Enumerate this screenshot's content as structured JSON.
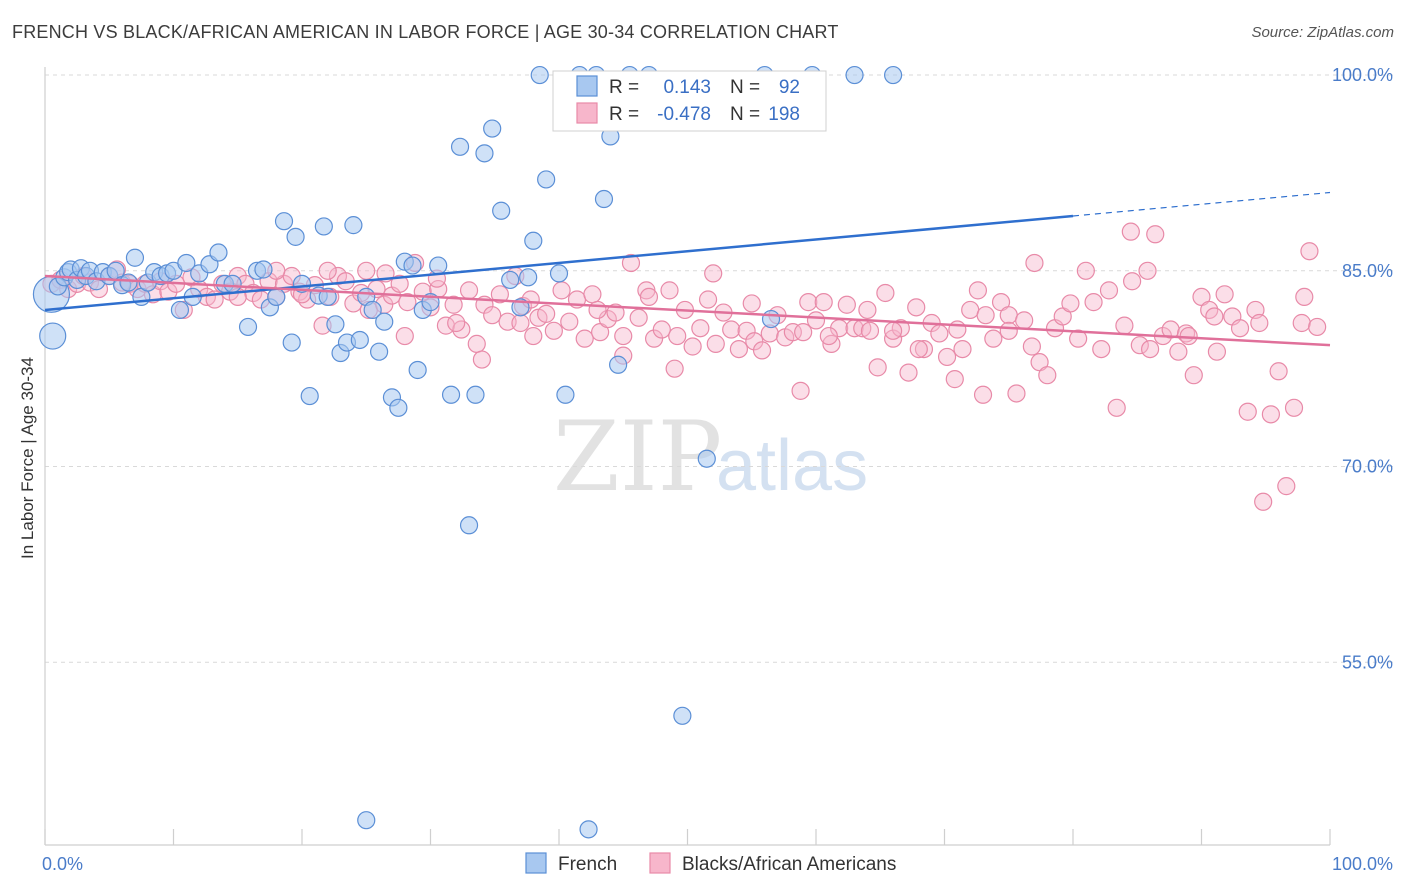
{
  "header": {
    "title": "FRENCH VS BLACK/AFRICAN AMERICAN IN LABOR FORCE | AGE 30-34 CORRELATION CHART",
    "source": "Source: ZipAtlas.com"
  },
  "watermark": {
    "zip": "ZIP",
    "atlas": "atlas"
  },
  "legend": {
    "rows": [
      {
        "r_label": "R =",
        "r_value": "0.143",
        "n_label": "N =",
        "n_value": "92"
      },
      {
        "r_label": "R =",
        "r_value": "-0.478",
        "n_label": "N =",
        "n_value": "198"
      }
    ]
  },
  "bottom_legend": {
    "french": "French",
    "black": "Blacks/African Americans"
  },
  "colors": {
    "french_fill": "#a8c8f0",
    "french_stroke": "#5b8fd6",
    "french_line": "#2f6fce",
    "black_fill": "#f7b6cb",
    "black_stroke": "#e88aa8",
    "black_line": "#e0709a",
    "tick_label": "#4a7cc9",
    "grid": "#d9d9d9"
  },
  "chart_data": {
    "type": "scatter",
    "title": "FRENCH VS BLACK/AFRICAN AMERICAN IN LABOR FORCE | AGE 30-34 CORRELATION CHART",
    "xlabel": "",
    "ylabel": "In Labor Force | Age 30-34",
    "xlim": [
      0,
      100
    ],
    "ylim": [
      41,
      101
    ],
    "x_tick_labels": [
      "0.0%",
      "100.0%"
    ],
    "y_ticks": [
      100,
      85,
      70,
      55
    ],
    "y_tick_labels": [
      "100.0%",
      "85.0%",
      "70.0%",
      "55.0%"
    ],
    "grid": "horizontal dashed",
    "legend_position": "top-center",
    "series": [
      {
        "name": "French",
        "r": 0.143,
        "n": 92,
        "trend": {
          "x0": 0,
          "y0": 82.0,
          "x1": 80,
          "y1": 89.2,
          "dashed_to_x": 100,
          "dashed_to_y": 91.0
        },
        "points": [
          [
            0.5,
            83.2
          ],
          [
            0.6,
            80.0
          ],
          [
            1.0,
            83.8
          ],
          [
            1.5,
            84.5
          ],
          [
            1.8,
            84.9
          ],
          [
            2.0,
            85.1
          ],
          [
            2.5,
            84.3
          ],
          [
            2.8,
            85.2
          ],
          [
            3.2,
            84.6
          ],
          [
            3.5,
            85.0
          ],
          [
            4.0,
            84.2
          ],
          [
            4.5,
            84.9
          ],
          [
            5.0,
            84.6
          ],
          [
            5.5,
            85.0
          ],
          [
            6.0,
            83.9
          ],
          [
            6.5,
            84.1
          ],
          [
            7.0,
            86.0
          ],
          [
            7.5,
            83.0
          ],
          [
            8.0,
            84.1
          ],
          [
            8.5,
            84.9
          ],
          [
            9.0,
            84.6
          ],
          [
            9.5,
            84.8
          ],
          [
            10.0,
            85.0
          ],
          [
            10.5,
            82.0
          ],
          [
            11.0,
            85.6
          ],
          [
            11.5,
            83.0
          ],
          [
            12.0,
            84.8
          ],
          [
            12.8,
            85.5
          ],
          [
            13.5,
            86.4
          ],
          [
            14.0,
            84.0
          ],
          [
            14.6,
            84.0
          ],
          [
            15.8,
            80.7
          ],
          [
            16.5,
            85.0
          ],
          [
            17.0,
            85.1
          ],
          [
            17.5,
            82.2
          ],
          [
            18.0,
            83.0
          ],
          [
            18.6,
            88.8
          ],
          [
            19.2,
            79.5
          ],
          [
            19.5,
            87.6
          ],
          [
            20.0,
            84.0
          ],
          [
            20.6,
            75.4
          ],
          [
            21.3,
            83.1
          ],
          [
            21.7,
            88.4
          ],
          [
            22.0,
            83.0
          ],
          [
            22.6,
            80.9
          ],
          [
            23.0,
            78.7
          ],
          [
            23.5,
            79.5
          ],
          [
            24.0,
            88.5
          ],
          [
            24.5,
            79.7
          ],
          [
            25.0,
            83.0
          ],
          [
            25.5,
            82.0
          ],
          [
            26.0,
            78.8
          ],
          [
            26.4,
            81.1
          ],
          [
            27.0,
            75.3
          ],
          [
            27.5,
            74.5
          ],
          [
            28.0,
            85.7
          ],
          [
            28.6,
            85.4
          ],
          [
            29.0,
            77.4
          ],
          [
            29.4,
            82.0
          ],
          [
            30.0,
            82.6
          ],
          [
            30.6,
            85.4
          ],
          [
            31.6,
            75.5
          ],
          [
            32.3,
            94.5
          ],
          [
            33.0,
            65.5
          ],
          [
            33.5,
            75.5
          ],
          [
            34.2,
            94.0
          ],
          [
            34.8,
            95.9
          ],
          [
            35.5,
            89.6
          ],
          [
            36.2,
            84.3
          ],
          [
            37.0,
            82.2
          ],
          [
            37.6,
            84.5
          ],
          [
            38.0,
            87.3
          ],
          [
            38.5,
            100.0
          ],
          [
            39.0,
            92.0
          ],
          [
            40.0,
            84.8
          ],
          [
            40.5,
            75.5
          ],
          [
            41.6,
            100.0
          ],
          [
            42.3,
            42.2
          ],
          [
            42.9,
            100.0
          ],
          [
            43.5,
            90.5
          ],
          [
            44.0,
            95.3
          ],
          [
            44.6,
            77.8
          ],
          [
            45.5,
            100.0
          ],
          [
            47.0,
            100.0
          ],
          [
            49.6,
            50.9
          ],
          [
            51.5,
            70.6
          ],
          [
            56.0,
            100.0
          ],
          [
            56.5,
            81.3
          ],
          [
            59.7,
            100.0
          ],
          [
            63.0,
            100.0
          ],
          [
            66.0,
            100.0
          ],
          [
            25.0,
            42.9
          ]
        ],
        "sizes_note": "first point larger"
      },
      {
        "name": "Blacks/African Americans",
        "r": -0.478,
        "n": 198,
        "trend": {
          "x0": 0,
          "y0": 84.6,
          "x1": 100,
          "y1": 79.3
        },
        "points": [
          [
            0.5,
            84.0
          ],
          [
            1.2,
            84.3
          ],
          [
            1.8,
            83.6
          ],
          [
            2.5,
            84.0
          ],
          [
            3.0,
            84.6
          ],
          [
            3.5,
            84.1
          ],
          [
            4.2,
            83.6
          ],
          [
            5.0,
            84.6
          ],
          [
            5.6,
            85.1
          ],
          [
            6.0,
            84.1
          ],
          [
            6.6,
            84.0
          ],
          [
            7.2,
            83.6
          ],
          [
            7.8,
            84.0
          ],
          [
            8.4,
            83.2
          ],
          [
            9.0,
            84.2
          ],
          [
            9.6,
            83.4
          ],
          [
            10.2,
            84.0
          ],
          [
            10.8,
            82.0
          ],
          [
            11.4,
            84.5
          ],
          [
            12.0,
            83.6
          ],
          [
            12.6,
            83.0
          ],
          [
            13.2,
            82.8
          ],
          [
            13.8,
            84.0
          ],
          [
            14.4,
            83.4
          ],
          [
            15.0,
            84.6
          ],
          [
            15.6,
            84.0
          ],
          [
            16.2,
            83.3
          ],
          [
            16.8,
            82.8
          ],
          [
            17.4,
            84.2
          ],
          [
            18.0,
            83.0
          ],
          [
            18.6,
            84.0
          ],
          [
            19.2,
            84.6
          ],
          [
            19.8,
            83.4
          ],
          [
            20.4,
            82.8
          ],
          [
            21.0,
            83.9
          ],
          [
            21.6,
            80.8
          ],
          [
            22.2,
            83.0
          ],
          [
            22.8,
            84.6
          ],
          [
            23.4,
            84.2
          ],
          [
            24.0,
            82.5
          ],
          [
            24.6,
            83.3
          ],
          [
            25.2,
            82.0
          ],
          [
            25.8,
            83.6
          ],
          [
            26.4,
            82.4
          ],
          [
            27.0,
            83.1
          ],
          [
            27.6,
            84.0
          ],
          [
            28.2,
            82.6
          ],
          [
            28.8,
            85.6
          ],
          [
            29.4,
            83.4
          ],
          [
            30.0,
            82.2
          ],
          [
            30.6,
            83.6
          ],
          [
            31.2,
            80.8
          ],
          [
            31.8,
            82.4
          ],
          [
            32.4,
            80.5
          ],
          [
            33.0,
            83.5
          ],
          [
            33.6,
            79.4
          ],
          [
            34.2,
            82.4
          ],
          [
            34.8,
            81.6
          ],
          [
            35.4,
            83.2
          ],
          [
            36.0,
            81.1
          ],
          [
            36.6,
            84.6
          ],
          [
            37.2,
            82.3
          ],
          [
            37.8,
            82.8
          ],
          [
            38.4,
            81.4
          ],
          [
            39.0,
            81.7
          ],
          [
            39.6,
            80.4
          ],
          [
            40.2,
            83.5
          ],
          [
            40.8,
            81.1
          ],
          [
            41.4,
            82.8
          ],
          [
            42.0,
            79.8
          ],
          [
            42.6,
            83.2
          ],
          [
            43.2,
            80.3
          ],
          [
            43.8,
            81.3
          ],
          [
            44.4,
            81.8
          ],
          [
            45.0,
            80.0
          ],
          [
            45.6,
            85.6
          ],
          [
            46.2,
            81.4
          ],
          [
            46.8,
            83.5
          ],
          [
            47.4,
            79.8
          ],
          [
            48.0,
            80.5
          ],
          [
            48.6,
            83.5
          ],
          [
            49.2,
            80.0
          ],
          [
            49.8,
            82.0
          ],
          [
            50.4,
            79.2
          ],
          [
            51.0,
            80.6
          ],
          [
            51.6,
            82.8
          ],
          [
            52.2,
            79.4
          ],
          [
            52.8,
            81.8
          ],
          [
            53.4,
            80.5
          ],
          [
            54.0,
            79.0
          ],
          [
            54.6,
            80.4
          ],
          [
            55.2,
            79.6
          ],
          [
            55.8,
            78.9
          ],
          [
            56.4,
            80.2
          ],
          [
            57.0,
            81.6
          ],
          [
            57.6,
            79.9
          ],
          [
            58.2,
            80.3
          ],
          [
            58.8,
            75.8
          ],
          [
            59.4,
            82.6
          ],
          [
            60.0,
            81.2
          ],
          [
            60.6,
            82.6
          ],
          [
            61.2,
            79.4
          ],
          [
            61.8,
            80.6
          ],
          [
            62.4,
            82.4
          ],
          [
            63.0,
            80.6
          ],
          [
            63.6,
            80.6
          ],
          [
            64.2,
            80.4
          ],
          [
            64.8,
            77.6
          ],
          [
            65.4,
            83.3
          ],
          [
            66.0,
            79.8
          ],
          [
            66.6,
            80.6
          ],
          [
            67.2,
            77.2
          ],
          [
            67.8,
            82.2
          ],
          [
            68.4,
            79.0
          ],
          [
            69.0,
            81.0
          ],
          [
            69.6,
            80.2
          ],
          [
            70.2,
            78.4
          ],
          [
            70.8,
            76.7
          ],
          [
            71.4,
            79.0
          ],
          [
            72.0,
            82.0
          ],
          [
            72.6,
            83.5
          ],
          [
            73.2,
            81.6
          ],
          [
            73.8,
            79.8
          ],
          [
            74.4,
            82.6
          ],
          [
            75.0,
            81.6
          ],
          [
            75.6,
            75.6
          ],
          [
            76.2,
            81.2
          ],
          [
            76.8,
            79.2
          ],
          [
            77.4,
            78.0
          ],
          [
            78.0,
            77.0
          ],
          [
            78.6,
            80.6
          ],
          [
            79.2,
            81.5
          ],
          [
            79.8,
            82.5
          ],
          [
            80.4,
            79.8
          ],
          [
            81.0,
            85.0
          ],
          [
            81.6,
            82.6
          ],
          [
            82.2,
            79.0
          ],
          [
            82.8,
            83.5
          ],
          [
            83.4,
            74.5
          ],
          [
            84.0,
            80.8
          ],
          [
            84.6,
            84.2
          ],
          [
            85.2,
            79.3
          ],
          [
            85.8,
            85.0
          ],
          [
            86.4,
            87.8
          ],
          [
            87.0,
            80.0
          ],
          [
            87.6,
            80.5
          ],
          [
            88.2,
            78.8
          ],
          [
            88.8,
            80.2
          ],
          [
            89.4,
            77.0
          ],
          [
            90.0,
            83.0
          ],
          [
            90.6,
            82.0
          ],
          [
            91.2,
            78.8
          ],
          [
            91.8,
            83.2
          ],
          [
            92.4,
            81.5
          ],
          [
            93.0,
            80.6
          ],
          [
            93.6,
            74.2
          ],
          [
            94.2,
            82.0
          ],
          [
            94.8,
            67.3
          ],
          [
            95.4,
            74.0
          ],
          [
            96.0,
            77.3
          ],
          [
            96.6,
            68.5
          ],
          [
            97.2,
            74.5
          ],
          [
            97.8,
            81.0
          ],
          [
            98.4,
            86.5
          ],
          [
            99.0,
            80.7
          ],
          [
            84.5,
            88.0
          ],
          [
            75.0,
            80.4
          ],
          [
            66.0,
            80.4
          ],
          [
            45.0,
            78.5
          ],
          [
            37.0,
            81.0
          ],
          [
            25.0,
            85.0
          ],
          [
            22.0,
            85.0
          ],
          [
            18.0,
            85.0
          ],
          [
            64.0,
            82.0
          ],
          [
            55.0,
            82.5
          ],
          [
            47.0,
            83.0
          ],
          [
            52.0,
            84.8
          ],
          [
            59.0,
            80.3
          ],
          [
            71.0,
            80.5
          ],
          [
            77.0,
            85.6
          ],
          [
            89.0,
            80.0
          ],
          [
            91.0,
            81.5
          ],
          [
            43.0,
            82.0
          ],
          [
            38.0,
            80.0
          ],
          [
            32.0,
            81.0
          ],
          [
            28.0,
            80.0
          ],
          [
            34.0,
            78.2
          ],
          [
            49.0,
            77.5
          ],
          [
            61.0,
            80.0
          ],
          [
            68.0,
            79.0
          ],
          [
            73.0,
            75.5
          ],
          [
            86.0,
            79.0
          ],
          [
            94.5,
            81.0
          ],
          [
            98.0,
            83.0
          ],
          [
            30.5,
            84.4
          ],
          [
            26.5,
            84.8
          ],
          [
            20.0,
            83.2
          ],
          [
            15.0,
            83.0
          ]
        ]
      }
    ]
  }
}
